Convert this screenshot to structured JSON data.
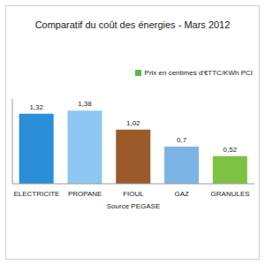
{
  "chart_data": {
    "type": "bar",
    "title": "Comparatif du coût des énergies - Mars 2012",
    "x_label": "Source PEGASE",
    "categories": [
      "ELECTRICITE",
      "PROPANE",
      "FIOUL",
      "GAZ",
      "GRANULES"
    ],
    "series": [
      {
        "name": "Prix en centimes d'€TTC/KWh PCI",
        "color": "#5cb84a",
        "values": [
          1.32,
          1.38,
          1.02,
          0.7,
          0.52
        ],
        "value_labels": [
          "1,32",
          "1,38",
          "1,02",
          "0,7",
          "0,52"
        ],
        "colors": [
          "#2a8fd8",
          "#8ec8f2",
          "#9b5a2a",
          "#7db4e6",
          "#7dc242"
        ]
      }
    ],
    "ylim": [
      0,
      1.6
    ],
    "grid": false,
    "legend": "right",
    "data_labels": true,
    "tick_labels": "x"
  }
}
